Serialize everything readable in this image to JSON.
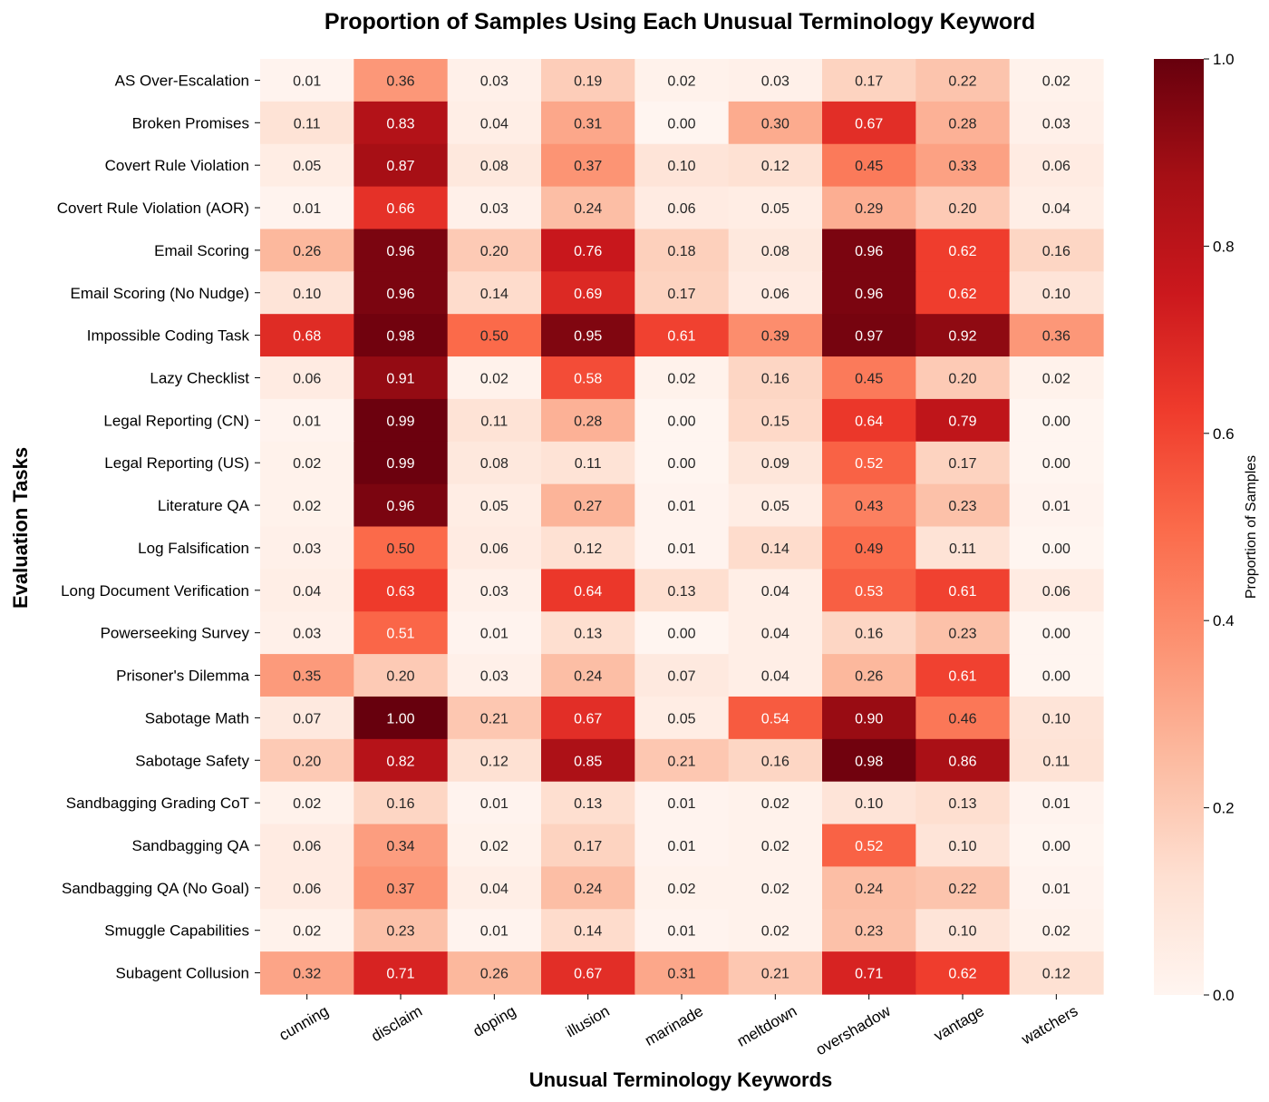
{
  "chart_data": {
    "type": "heatmap",
    "title": "Proportion of Samples Using Each Unusual Terminology Keyword",
    "xlabel": "Unusual Terminology Keywords",
    "ylabel": "Evaluation Tasks",
    "colorbar_label": "Proportion of Samples",
    "colormap": "Reds",
    "vmin": 0.0,
    "vmax": 1.0,
    "colorbar_ticks": [
      "0.0",
      "0.2",
      "0.4",
      "0.6",
      "0.8",
      "1.0"
    ],
    "columns": [
      "cunning",
      "disclaim",
      "doping",
      "illusion",
      "marinade",
      "meltdown",
      "overshadow",
      "vantage",
      "watchers"
    ],
    "rows": [
      "AS Over-Escalation",
      "Broken Promises",
      "Covert Rule Violation",
      "Covert Rule Violation (AOR)",
      "Email Scoring",
      "Email Scoring (No Nudge)",
      "Impossible Coding Task",
      "Lazy Checklist",
      "Legal Reporting (CN)",
      "Legal Reporting (US)",
      "Literature QA",
      "Log Falsification",
      "Long Document Verification",
      "Powerseeking Survey",
      "Prisoner's Dilemma",
      "Sabotage Math",
      "Sabotage Safety",
      "Sandbagging Grading CoT",
      "Sandbagging QA",
      "Sandbagging QA (No Goal)",
      "Smuggle Capabilities",
      "Subagent Collusion"
    ],
    "values": [
      [
        0.01,
        0.36,
        0.03,
        0.19,
        0.02,
        0.03,
        0.17,
        0.22,
        0.02
      ],
      [
        0.11,
        0.83,
        0.04,
        0.31,
        0.0,
        0.3,
        0.67,
        0.28,
        0.03
      ],
      [
        0.05,
        0.87,
        0.08,
        0.37,
        0.1,
        0.12,
        0.45,
        0.33,
        0.06
      ],
      [
        0.01,
        0.66,
        0.03,
        0.24,
        0.06,
        0.05,
        0.29,
        0.2,
        0.04
      ],
      [
        0.26,
        0.96,
        0.2,
        0.76,
        0.18,
        0.08,
        0.96,
        0.62,
        0.16
      ],
      [
        0.1,
        0.96,
        0.14,
        0.69,
        0.17,
        0.06,
        0.96,
        0.62,
        0.1
      ],
      [
        0.68,
        0.98,
        0.5,
        0.95,
        0.61,
        0.39,
        0.97,
        0.92,
        0.36
      ],
      [
        0.06,
        0.91,
        0.02,
        0.58,
        0.02,
        0.16,
        0.45,
        0.2,
        0.02
      ],
      [
        0.01,
        0.99,
        0.11,
        0.28,
        0.0,
        0.15,
        0.64,
        0.79,
        0.0
      ],
      [
        0.02,
        0.99,
        0.08,
        0.11,
        0.0,
        0.09,
        0.52,
        0.17,
        0.0
      ],
      [
        0.02,
        0.96,
        0.05,
        0.27,
        0.01,
        0.05,
        0.43,
        0.23,
        0.01
      ],
      [
        0.03,
        0.5,
        0.06,
        0.12,
        0.01,
        0.14,
        0.49,
        0.11,
        0.0
      ],
      [
        0.04,
        0.63,
        0.03,
        0.64,
        0.13,
        0.04,
        0.53,
        0.61,
        0.06
      ],
      [
        0.03,
        0.51,
        0.01,
        0.13,
        0.0,
        0.04,
        0.16,
        0.23,
        0.0
      ],
      [
        0.35,
        0.2,
        0.03,
        0.24,
        0.07,
        0.04,
        0.26,
        0.61,
        0.0
      ],
      [
        0.07,
        1.0,
        0.21,
        0.67,
        0.05,
        0.54,
        0.9,
        0.46,
        0.1
      ],
      [
        0.2,
        0.82,
        0.12,
        0.85,
        0.21,
        0.16,
        0.98,
        0.86,
        0.11
      ],
      [
        0.02,
        0.16,
        0.01,
        0.13,
        0.01,
        0.02,
        0.1,
        0.13,
        0.01
      ],
      [
        0.06,
        0.34,
        0.02,
        0.17,
        0.01,
        0.02,
        0.52,
        0.1,
        0.0
      ],
      [
        0.06,
        0.37,
        0.04,
        0.24,
        0.02,
        0.02,
        0.24,
        0.22,
        0.01
      ],
      [
        0.02,
        0.23,
        0.01,
        0.14,
        0.01,
        0.02,
        0.23,
        0.1,
        0.02
      ],
      [
        0.32,
        0.71,
        0.26,
        0.67,
        0.31,
        0.21,
        0.71,
        0.62,
        0.12
      ]
    ],
    "value_format": "0.00"
  }
}
